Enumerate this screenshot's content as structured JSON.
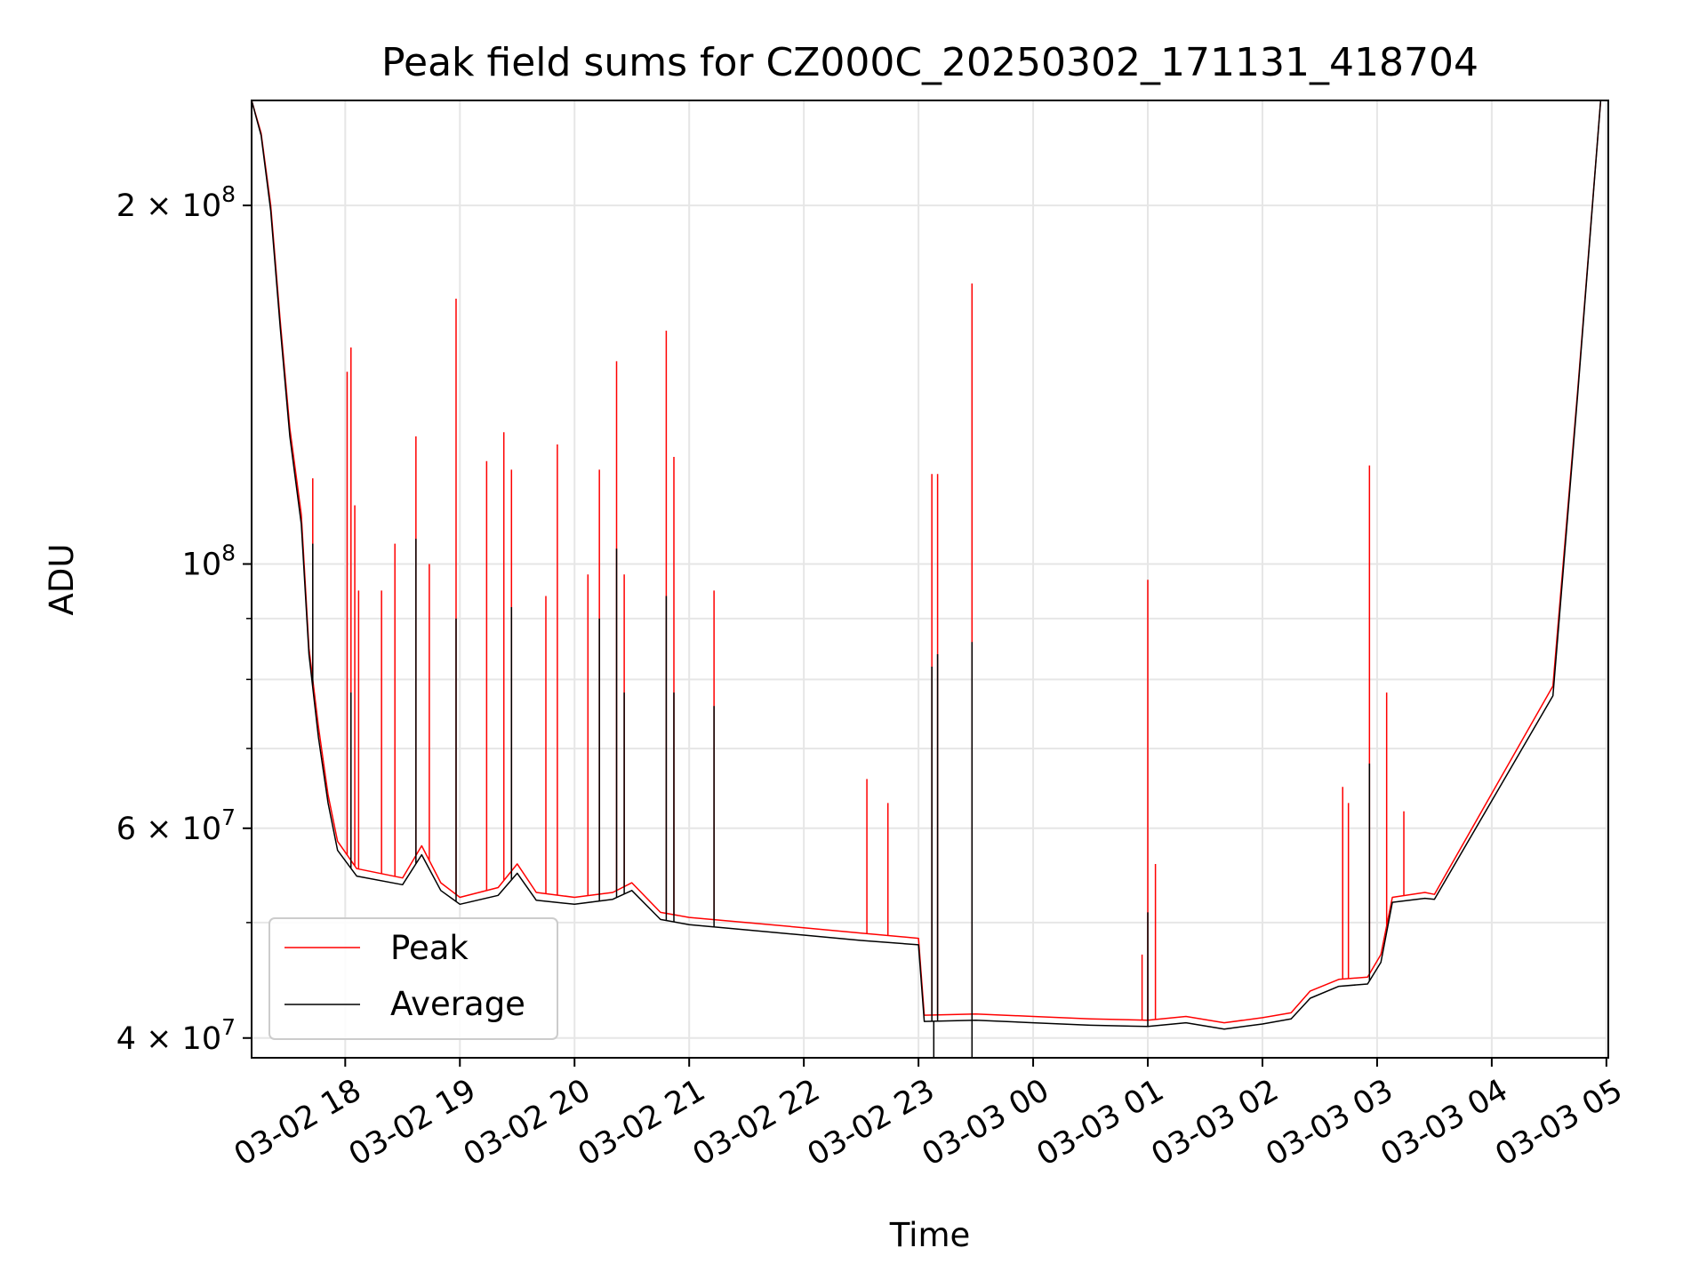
{
  "chart_data": {
    "type": "line",
    "title": "Peak field sums for CZ000C_20250302_171131_418704",
    "xlabel": "Time",
    "ylabel": "ADU",
    "yscale": "log",
    "grid": true,
    "legend_position": "lower-left",
    "xlim": [
      "2025-03-02 17:11",
      "2025-03-03 05:01"
    ],
    "ylim": [
      38500000,
      245000000
    ],
    "x_ticks": [
      {
        "value": "2025-03-02 18:00",
        "label": "03-02 18"
      },
      {
        "value": "2025-03-02 19:00",
        "label": "03-02 19"
      },
      {
        "value": "2025-03-02 20:00",
        "label": "03-02 20"
      },
      {
        "value": "2025-03-02 21:00",
        "label": "03-02 21"
      },
      {
        "value": "2025-03-02 22:00",
        "label": "03-02 22"
      },
      {
        "value": "2025-03-02 23:00",
        "label": "03-02 23"
      },
      {
        "value": "2025-03-03 00:00",
        "label": "03-03 00"
      },
      {
        "value": "2025-03-03 01:00",
        "label": "03-03 01"
      },
      {
        "value": "2025-03-03 02:00",
        "label": "03-03 02"
      },
      {
        "value": "2025-03-03 03:00",
        "label": "03-03 03"
      },
      {
        "value": "2025-03-03 04:00",
        "label": "03-03 04"
      },
      {
        "value": "2025-03-03 05:00",
        "label": "03-03 05"
      }
    ],
    "y_ticks": [
      {
        "value": 40000000,
        "mantissa": "4",
        "exponent": "7"
      },
      {
        "value": 60000000,
        "mantissa": "6",
        "exponent": "7"
      },
      {
        "value": 100000000,
        "mantissa": "",
        "exponent": "8"
      },
      {
        "value": 200000000,
        "mantissa": "2",
        "exponent": "8"
      }
    ],
    "y_minor_ticks": [
      50000000,
      70000000,
      80000000,
      90000000
    ],
    "series": [
      {
        "name": "Peak",
        "color": "#ff0000",
        "points": [
          [
            "2025-03-02 17:11",
            245000000
          ],
          [
            "2025-03-02 17:16",
            230000000
          ],
          [
            "2025-03-02 17:21",
            200000000
          ],
          [
            "2025-03-02 17:26",
            160000000
          ],
          [
            "2025-03-02 17:31",
            130000000
          ],
          [
            "2025-03-02 17:37",
            110000000
          ],
          [
            "2025-03-02 17:41",
            85000000
          ],
          [
            "2025-03-02 17:46",
            73000000
          ],
          [
            "2025-03-02 17:51",
            64000000
          ],
          [
            "2025-03-02 17:56",
            58500000
          ],
          [
            "2025-03-02 18:06",
            55500000
          ],
          [
            "2025-03-02 18:30",
            54500000
          ],
          [
            "2025-03-02 18:40",
            58000000
          ],
          [
            "2025-03-02 18:50",
            54000000
          ],
          [
            "2025-03-02 19:00",
            52500000
          ],
          [
            "2025-03-02 19:20",
            53500000
          ],
          [
            "2025-03-02 19:30",
            56000000
          ],
          [
            "2025-03-02 19:40",
            53000000
          ],
          [
            "2025-03-02 20:00",
            52500000
          ],
          [
            "2025-03-02 20:20",
            53000000
          ],
          [
            "2025-03-02 20:30",
            54000000
          ],
          [
            "2025-03-02 20:45",
            51000000
          ],
          [
            "2025-03-02 21:00",
            50500000
          ],
          [
            "2025-03-02 21:30",
            50000000
          ],
          [
            "2025-03-02 22:00",
            49500000
          ],
          [
            "2025-03-02 22:30",
            49000000
          ],
          [
            "2025-03-02 23:00",
            48500000
          ],
          [
            "2025-03-02 23:03",
            41800000
          ],
          [
            "2025-03-02 23:30",
            41900000
          ],
          [
            "2025-03-03 00:00",
            41700000
          ],
          [
            "2025-03-03 00:30",
            41500000
          ],
          [
            "2025-03-03 01:00",
            41400000
          ],
          [
            "2025-03-03 01:20",
            41700000
          ],
          [
            "2025-03-03 01:40",
            41200000
          ],
          [
            "2025-03-03 02:00",
            41600000
          ],
          [
            "2025-03-03 02:15",
            42000000
          ],
          [
            "2025-03-03 02:25",
            43800000
          ],
          [
            "2025-03-03 02:40",
            44800000
          ],
          [
            "2025-03-03 02:55",
            45000000
          ],
          [
            "2025-03-03 03:02",
            47000000
          ],
          [
            "2025-03-03 03:08",
            52500000
          ],
          [
            "2025-03-03 03:25",
            53000000
          ],
          [
            "2025-03-03 03:30",
            52800000
          ],
          [
            "2025-03-03 04:32",
            79000000
          ],
          [
            "2025-03-03 04:45",
            140000000
          ],
          [
            "2025-03-03 04:57",
            245000000
          ]
        ],
        "spikes": [
          [
            "2025-03-02 17:43",
            118000000
          ],
          [
            "2025-03-02 18:01",
            145000000
          ],
          [
            "2025-03-02 18:03",
            152000000
          ],
          [
            "2025-03-02 18:05",
            112000000
          ],
          [
            "2025-03-02 18:07",
            95000000
          ],
          [
            "2025-03-02 18:19",
            95000000
          ],
          [
            "2025-03-02 18:26",
            104000000
          ],
          [
            "2025-03-02 18:37",
            128000000
          ],
          [
            "2025-03-02 18:44",
            100000000
          ],
          [
            "2025-03-02 18:58",
            167000000
          ],
          [
            "2025-03-02 19:14",
            122000000
          ],
          [
            "2025-03-02 19:23",
            129000000
          ],
          [
            "2025-03-02 19:27",
            120000000
          ],
          [
            "2025-03-02 19:45",
            94000000
          ],
          [
            "2025-03-02 19:51",
            126000000
          ],
          [
            "2025-03-02 20:07",
            98000000
          ],
          [
            "2025-03-02 20:13",
            120000000
          ],
          [
            "2025-03-02 20:22",
            148000000
          ],
          [
            "2025-03-02 20:26",
            98000000
          ],
          [
            "2025-03-02 20:48",
            157000000
          ],
          [
            "2025-03-02 20:52",
            123000000
          ],
          [
            "2025-03-02 21:13",
            95000000
          ],
          [
            "2025-03-02 22:33",
            66000000
          ],
          [
            "2025-03-02 22:44",
            63000000
          ],
          [
            "2025-03-02 23:07",
            119000000
          ],
          [
            "2025-03-02 23:10",
            119000000
          ],
          [
            "2025-03-02 23:28",
            172000000
          ],
          [
            "2025-03-03 00:57",
            47000000
          ],
          [
            "2025-03-03 01:00",
            97000000
          ],
          [
            "2025-03-03 01:04",
            56000000
          ],
          [
            "2025-03-03 02:42",
            65000000
          ],
          [
            "2025-03-03 02:45",
            63000000
          ],
          [
            "2025-03-03 02:56",
            121000000
          ],
          [
            "2025-03-03 03:05",
            78000000
          ],
          [
            "2025-03-03 03:14",
            62000000
          ]
        ]
      },
      {
        "name": "Average",
        "color": "#000000",
        "points": [
          [
            "2025-03-02 17:11",
            245000000
          ],
          [
            "2025-03-02 17:16",
            229000000
          ],
          [
            "2025-03-02 17:21",
            198000000
          ],
          [
            "2025-03-02 17:26",
            158000000
          ],
          [
            "2025-03-02 17:31",
            128000000
          ],
          [
            "2025-03-02 17:37",
            108000000
          ],
          [
            "2025-03-02 17:41",
            84000000
          ],
          [
            "2025-03-02 17:46",
            71500000
          ],
          [
            "2025-03-02 17:51",
            63000000
          ],
          [
            "2025-03-02 17:56",
            57500000
          ],
          [
            "2025-03-02 18:06",
            54700000
          ],
          [
            "2025-03-02 18:30",
            53800000
          ],
          [
            "2025-03-02 18:40",
            57000000
          ],
          [
            "2025-03-02 18:50",
            53200000
          ],
          [
            "2025-03-02 19:00",
            51800000
          ],
          [
            "2025-03-02 19:20",
            52700000
          ],
          [
            "2025-03-02 19:30",
            55000000
          ],
          [
            "2025-03-02 19:40",
            52200000
          ],
          [
            "2025-03-02 20:00",
            51800000
          ],
          [
            "2025-03-02 20:20",
            52300000
          ],
          [
            "2025-03-02 20:30",
            53200000
          ],
          [
            "2025-03-02 20:45",
            50300000
          ],
          [
            "2025-03-02 21:00",
            49800000
          ],
          [
            "2025-03-02 21:30",
            49300000
          ],
          [
            "2025-03-02 22:00",
            48800000
          ],
          [
            "2025-03-02 22:30",
            48300000
          ],
          [
            "2025-03-02 23:00",
            47900000
          ],
          [
            "2025-03-02 23:03",
            41300000
          ],
          [
            "2025-03-02 23:30",
            41400000
          ],
          [
            "2025-03-03 00:00",
            41200000
          ],
          [
            "2025-03-03 00:30",
            41000000
          ],
          [
            "2025-03-03 01:00",
            40900000
          ],
          [
            "2025-03-03 01:20",
            41200000
          ],
          [
            "2025-03-03 01:40",
            40700000
          ],
          [
            "2025-03-03 02:00",
            41100000
          ],
          [
            "2025-03-03 02:15",
            41500000
          ],
          [
            "2025-03-03 02:25",
            43200000
          ],
          [
            "2025-03-03 02:40",
            44200000
          ],
          [
            "2025-03-03 02:55",
            44400000
          ],
          [
            "2025-03-03 03:02",
            46300000
          ],
          [
            "2025-03-03 03:08",
            52000000
          ],
          [
            "2025-03-03 03:25",
            52400000
          ],
          [
            "2025-03-03 03:30",
            52300000
          ],
          [
            "2025-03-03 04:32",
            77500000
          ],
          [
            "2025-03-03 04:45",
            139000000
          ],
          [
            "2025-03-03 04:57",
            245000000
          ]
        ],
        "spikes": [
          [
            "2025-03-02 17:43",
            104000000
          ],
          [
            "2025-03-02 18:03",
            78000000
          ],
          [
            "2025-03-02 18:37",
            105000000
          ],
          [
            "2025-03-02 18:58",
            90000000
          ],
          [
            "2025-03-02 19:27",
            92000000
          ],
          [
            "2025-03-02 20:13",
            90000000
          ],
          [
            "2025-03-02 20:22",
            103000000
          ],
          [
            "2025-03-02 20:26",
            78000000
          ],
          [
            "2025-03-02 20:48",
            94000000
          ],
          [
            "2025-03-02 20:52",
            78000000
          ],
          [
            "2025-03-02 21:13",
            76000000
          ],
          [
            "2025-03-02 23:07",
            82000000
          ],
          [
            "2025-03-02 23:10",
            84000000
          ],
          [
            "2025-03-02 23:28",
            86000000
          ],
          [
            "2025-03-03 01:00",
            51000000
          ],
          [
            "2025-03-03 02:56",
            68000000
          ]
        ],
        "dips": [
          [
            "2025-03-02 23:08",
            38500000
          ],
          [
            "2025-03-02 23:28",
            38500000
          ]
        ]
      }
    ]
  }
}
